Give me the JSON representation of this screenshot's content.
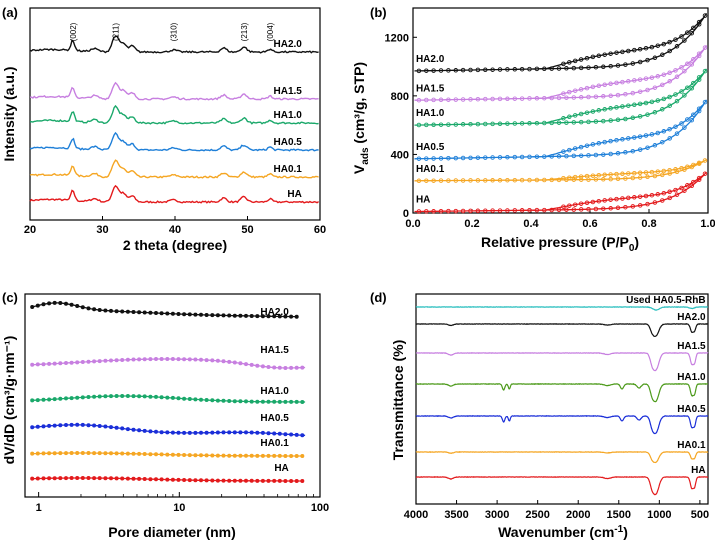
{
  "chart_data": [
    {
      "panel": "(a)",
      "type": "line",
      "title": "",
      "xlabel": "2 theta (degree)",
      "ylabel": "Intensity (a.u.)",
      "xlim": [
        20,
        60
      ],
      "xticks": [
        20,
        30,
        40,
        50,
        60
      ],
      "peak_labels": [
        {
          "label": "(002)",
          "x": 25.9
        },
        {
          "label": "(211)",
          "x": 31.8
        },
        {
          "label": "(310)",
          "x": 39.8
        },
        {
          "label": "(213)",
          "x": 49.5
        },
        {
          "label": "(004)",
          "x": 53.1
        }
      ],
      "series": [
        {
          "name": "HA",
          "color": "#e31a1c",
          "offset": 0
        },
        {
          "name": "HA0.1",
          "color": "#f5a623",
          "offset": 1
        },
        {
          "name": "HA0.5",
          "color": "#1e7fd8",
          "offset": 2
        },
        {
          "name": "HA1.0",
          "color": "#1aa86a",
          "offset": 3
        },
        {
          "name": "HA1.5",
          "color": "#c77fe0",
          "offset": 4
        },
        {
          "name": "HA2.0",
          "color": "#111111",
          "offset": 5
        }
      ]
    },
    {
      "panel": "(b)",
      "type": "line",
      "xlabel": "Relative pressure (P/P",
      "xlabel_sub": "0",
      "xlabel_end": ")",
      "ylabel": "V",
      "ylabel_sub": "ads",
      "ylabel_end": " (cm³/g, STP)",
      "xlim": [
        0,
        1
      ],
      "ylim": [
        0,
        1400
      ],
      "xticks": [
        "0.0",
        "0.2",
        "0.4",
        "0.6",
        "0.8",
        "1.0"
      ],
      "yticks": [
        "0",
        "400",
        "800",
        "1200"
      ],
      "series": [
        {
          "name": "HA",
          "color": "#e31a1c",
          "base": 10,
          "top": 290
        },
        {
          "name": "HA0.1",
          "color": "#f5a623",
          "base": 220,
          "top": 370
        },
        {
          "name": "HA0.5",
          "color": "#1e7fd8",
          "base": 370,
          "top": 790
        },
        {
          "name": "HA1.0",
          "color": "#1aa86a",
          "base": 600,
          "top": 1000
        },
        {
          "name": "HA1.5",
          "color": "#c77fe0",
          "base": 770,
          "top": 1160
        },
        {
          "name": "HA2.0",
          "color": "#111111",
          "base": 970,
          "top": 1380
        }
      ]
    },
    {
      "panel": "(c)",
      "type": "line",
      "xlabel": "Pore diameter (nm)",
      "ylabel": "dV/dD (cm³/g·nm⁻¹)",
      "xscale": "log",
      "xlim": [
        0.8,
        100
      ],
      "xticks": [
        "1",
        "10",
        "100"
      ],
      "series": [
        {
          "name": "HA",
          "color": "#e31a1c"
        },
        {
          "name": "HA0.1",
          "color": "#f5a623"
        },
        {
          "name": "HA0.5",
          "color": "#1a2ed8"
        },
        {
          "name": "HA1.0",
          "color": "#1aa86a"
        },
        {
          "name": "HA1.5",
          "color": "#c77fe0"
        },
        {
          "name": "HA2.0",
          "color": "#111111"
        }
      ]
    },
    {
      "panel": "(d)",
      "type": "line",
      "xlabel": "Wavenumber (cm",
      "xlabel_sup": "-1",
      "xlabel_end": ")",
      "ylabel": "Transmittance (%)",
      "xlim": [
        4000,
        400
      ],
      "xticks": [
        "4000",
        "3500",
        "3000",
        "2500",
        "2000",
        "1500",
        "1000",
        "500"
      ],
      "series": [
        {
          "name": "HA",
          "color": "#e31a1c"
        },
        {
          "name": "HA0.1",
          "color": "#f5a623"
        },
        {
          "name": "HA0.5",
          "color": "#1a2ed8"
        },
        {
          "name": "HA1.0",
          "color": "#4c9a1a"
        },
        {
          "name": "HA1.5",
          "color": "#c77fe0"
        },
        {
          "name": "HA2.0",
          "color": "#111111"
        },
        {
          "name": "Used HA0.5-RhB",
          "color": "#2bbfbf"
        }
      ]
    }
  ]
}
